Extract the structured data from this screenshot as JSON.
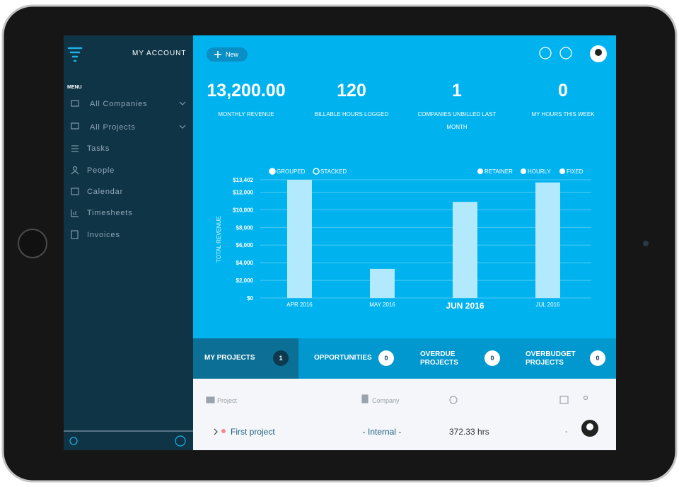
{
  "sidebar": {
    "account": "MY ACCOUNT",
    "menu_title": "MENU",
    "items": [
      "All Companies",
      "All Projects",
      "Tasks",
      "People",
      "Calendar",
      "Timesheets",
      "Invoices"
    ]
  },
  "toolbar": {
    "new_button": "New"
  },
  "stats": [
    {
      "value": "13,200.00",
      "label": "MONTHLY REVENUE"
    },
    {
      "value": "120",
      "label": "BILLABLE HOURS LOGGED"
    },
    {
      "value": "1",
      "label": "COMPANIES UNBILLED LAST MONTH"
    },
    {
      "value": "0",
      "label": "MY HOURS THIS WEEK"
    }
  ],
  "revenue_chart": {
    "type": "bar",
    "y_label": "TOTAL REVENUE",
    "categories": [
      "APR 2016",
      "MAY 2016",
      "JUN 2016",
      "JUL 2016"
    ],
    "values": [
      13402,
      3300,
      10900,
      13100
    ],
    "color": "#b3e9fc",
    "selected": 2,
    "ylim": [
      0,
      13402
    ],
    "yticks": [
      {
        "value": 0,
        "label": "$0"
      },
      {
        "value": 2000,
        "label": "$2,000"
      },
      {
        "value": 4000,
        "label": "$4,000"
      },
      {
        "value": 6000,
        "label": "$6,000"
      },
      {
        "value": 8000,
        "label": "$8,000"
      },
      {
        "value": 10000,
        "label": "$10,000"
      },
      {
        "value": 12000,
        "label": "$12,000"
      },
      {
        "value": 13402,
        "label": "$13,402"
      }
    ],
    "grid": true,
    "toggles": [
      "GROUPED",
      "STACKED"
    ],
    "legend": [
      "RETAINER",
      "HOURLY",
      "FIXED"
    ]
  },
  "tabs": [
    {
      "label": "MY PROJECTS",
      "count": 1
    },
    {
      "label": "OPPORTUNITIES",
      "count": 0
    },
    {
      "label": "OVERDUE PROJECTS",
      "count": 0
    },
    {
      "label": "OVERBUDGET PROJECTS",
      "count": 0
    }
  ],
  "table": {
    "columns": [
      "Project",
      "Company"
    ],
    "rows": [
      [
        "First project",
        "- Internal -",
        "372.33 hrs",
        "-"
      ]
    ]
  }
}
